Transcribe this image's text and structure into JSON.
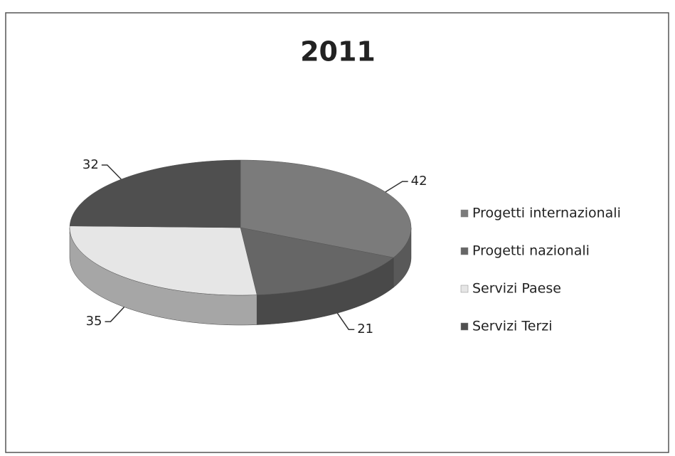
{
  "chart_data": {
    "type": "pie3d",
    "title": "2011",
    "categories": [
      "Progetti internazionali",
      "Progetti nazionali",
      "Servizi Paese",
      "Servizi Terzi"
    ],
    "values": [
      42,
      21,
      35,
      32
    ],
    "colors": [
      "#7b7b7b",
      "#666666",
      "#e6e6e6",
      "#4f4f4f"
    ],
    "legend": "right"
  }
}
